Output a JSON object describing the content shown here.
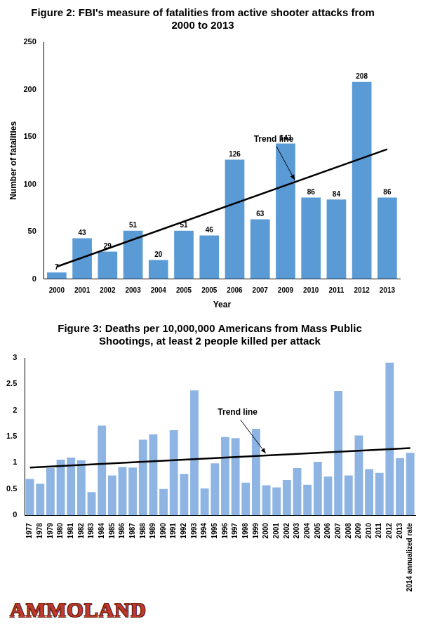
{
  "chart_data": [
    {
      "type": "bar",
      "title": "Figure 2: FBI's measure of fatalities from active shooter attacks from 2000 to 2013",
      "x_label": "Year",
      "y_label": "Number of fatalities",
      "categories": [
        "2000",
        "2001",
        "2002",
        "2003",
        "2004",
        "2005",
        "2005",
        "2006",
        "2007",
        "2009",
        "2010",
        "2011",
        "2012",
        "2013"
      ],
      "values": [
        7,
        43,
        29,
        51,
        20,
        51,
        46,
        126,
        63,
        143,
        86,
        84,
        208,
        86
      ],
      "color": "#5b9bd5",
      "ylim": [
        0,
        250
      ],
      "yticks": [
        0,
        50,
        100,
        150,
        200,
        250
      ],
      "grid": false,
      "data_labels": true,
      "series": [
        {
          "name": "Trend line",
          "type": "line",
          "color": "#000000",
          "values": [
            13,
            null,
            null,
            null,
            null,
            null,
            null,
            null,
            null,
            null,
            null,
            null,
            null,
            137
          ]
        }
      ]
    },
    {
      "type": "bar",
      "title": "Figure 3: Deaths per 10,000,000 Americans from Mass Public Shootings, at least 2 people killed per attack",
      "categories": [
        "1977",
        "1978",
        "1979",
        "1980",
        "1981",
        "1982",
        "1983",
        "1984",
        "1985",
        "1986",
        "1987",
        "1988",
        "1989",
        "1990",
        "1991",
        "1992",
        "1993",
        "1994",
        "1995",
        "1996",
        "1997",
        "1998",
        "1999",
        "2000",
        "2001",
        "2002",
        "2003",
        "2004",
        "2005",
        "2006",
        "2007",
        "2008",
        "2009",
        "2010",
        "2011",
        "2012",
        "2013",
        "2014 annualized rate"
      ],
      "values": [
        0.69,
        0.6,
        0.9,
        1.06,
        1.1,
        1.05,
        0.44,
        1.71,
        0.76,
        0.92,
        0.91,
        1.44,
        1.54,
        0.5,
        1.62,
        0.79,
        2.38,
        0.51,
        0.99,
        1.49,
        1.47,
        0.62,
        1.65,
        0.57,
        0.53,
        0.67,
        0.9,
        0.58,
        1.02,
        0.74,
        2.37,
        0.76,
        1.52,
        0.88,
        0.81,
        2.91,
        1.09,
        1.19
      ],
      "color": "#8eb4e3",
      "ylim": [
        0,
        3
      ],
      "yticks": [
        0,
        0.5,
        1,
        1.5,
        2,
        2.5,
        3
      ],
      "grid": false,
      "series": [
        {
          "name": "Trend line",
          "type": "line",
          "color": "#000000",
          "values": [
            0.91,
            null,
            null,
            null,
            null,
            null,
            null,
            null,
            null,
            null,
            null,
            null,
            null,
            null,
            null,
            null,
            null,
            null,
            null,
            null,
            null,
            null,
            null,
            null,
            null,
            null,
            null,
            null,
            null,
            null,
            null,
            null,
            null,
            null,
            null,
            null,
            null,
            1.28
          ]
        }
      ]
    }
  ],
  "logo": "AMMOLAND"
}
